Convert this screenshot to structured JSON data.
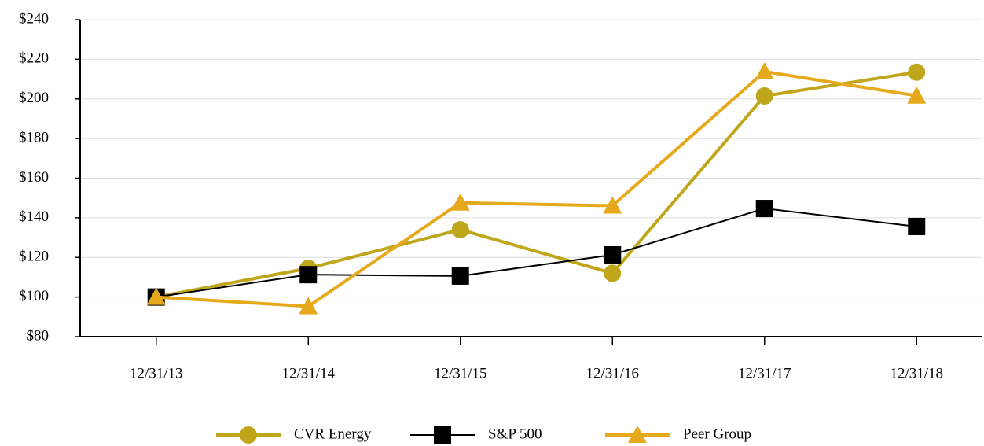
{
  "chart_data": {
    "type": "line",
    "categories": [
      "12/31/13",
      "12/31/14",
      "12/31/15",
      "12/31/16",
      "12/31/17",
      "12/31/18"
    ],
    "series": [
      {
        "name": "CVR Energy",
        "color": "#bfa61b",
        "marker": "circle",
        "values": [
          100,
          114.5,
          134,
          112,
          201.5,
          213.5
        ]
      },
      {
        "name": "S&P 500",
        "color": "#000000",
        "marker": "square",
        "values": [
          100,
          111.3,
          110.6,
          121.3,
          144.7,
          135.6
        ]
      },
      {
        "name": "Peer Group",
        "color": "#e6a91c",
        "marker": "triangle",
        "values": [
          100,
          95.3,
          147.6,
          146.1,
          213.8,
          201.6
        ]
      }
    ],
    "ylim": [
      80,
      240
    ],
    "yticks": [
      {
        "value": 80,
        "label": "$80"
      },
      {
        "value": 100,
        "label": "$100"
      },
      {
        "value": 120,
        "label": "$120"
      },
      {
        "value": 140,
        "label": "$140"
      },
      {
        "value": 160,
        "label": "$160"
      },
      {
        "value": 180,
        "label": "$180"
      },
      {
        "value": 200,
        "label": "$200"
      },
      {
        "value": 220,
        "label": "$220"
      },
      {
        "value": 240,
        "label": "$240"
      }
    ],
    "grid": true,
    "legend": "bottom"
  }
}
